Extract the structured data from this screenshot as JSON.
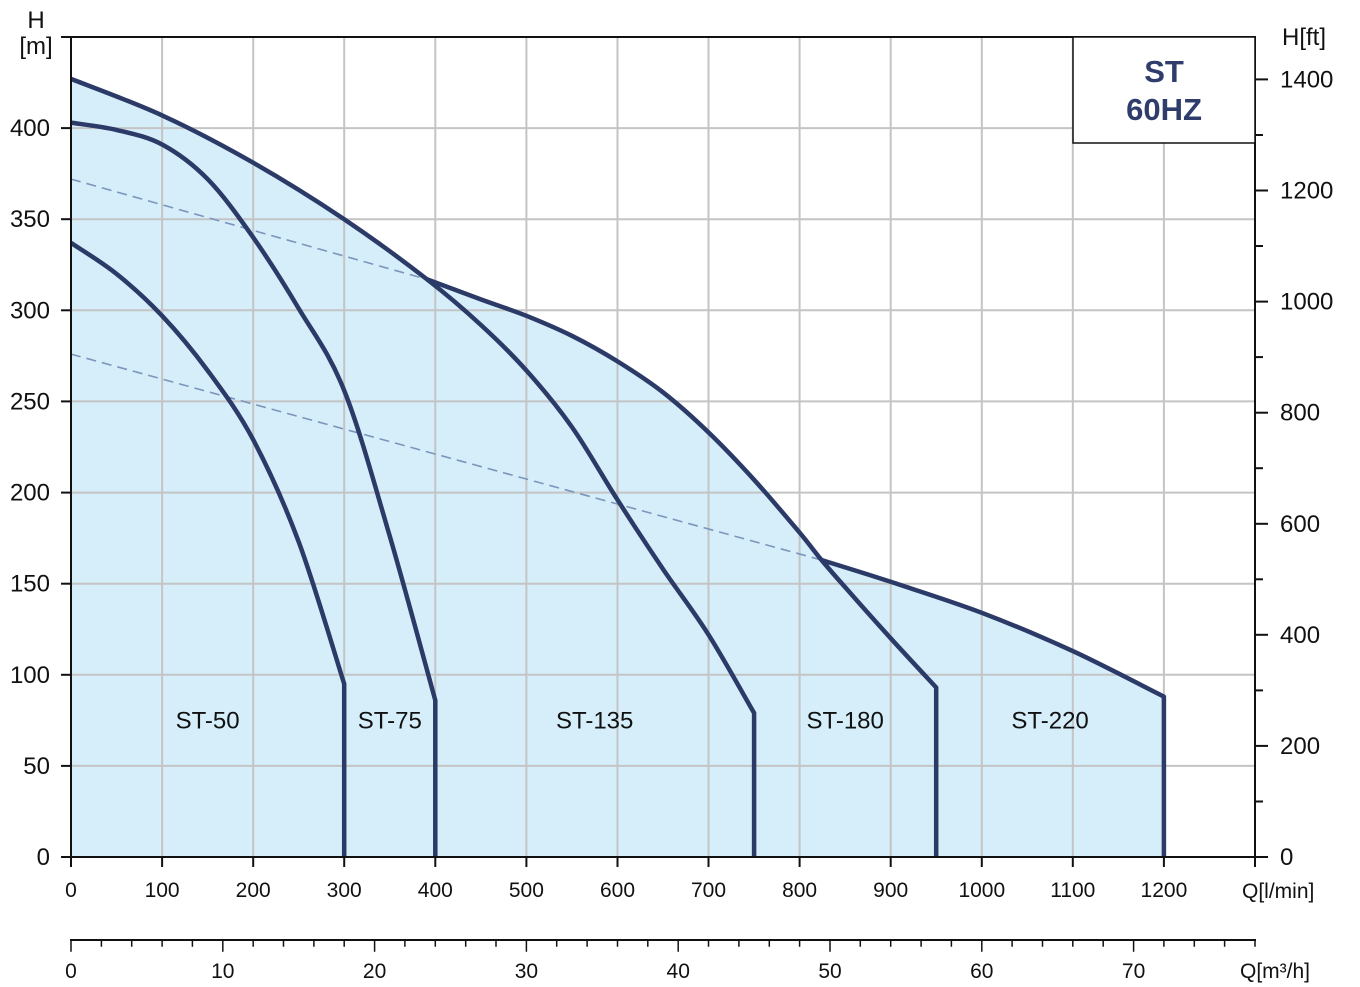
{
  "chart_data": {
    "type": "line",
    "badge": [
      "ST",
      "60HZ"
    ],
    "ylabel": "H",
    "ylabel_unit": "[m]",
    "y2label": "H[ft]",
    "xlabel": "Q[l/min]",
    "x2label": "Q[m³/h]",
    "xlim": [
      0,
      1300
    ],
    "ylim": [
      0,
      450
    ],
    "xticks": [
      0,
      100,
      200,
      300,
      400,
      500,
      600,
      700,
      800,
      900,
      1000,
      1100,
      1200
    ],
    "yticks": [
      0,
      50,
      100,
      150,
      200,
      250,
      300,
      350,
      400
    ],
    "y2": {
      "ticks": [
        0,
        200,
        400,
        600,
        800,
        1000,
        1200,
        1400
      ],
      "minor_step": 100
    },
    "x2": {
      "lim": [
        0,
        78
      ],
      "ticks": [
        0,
        10,
        20,
        30,
        40,
        50,
        60,
        70
      ],
      "minor_step": 2
    },
    "grid": true,
    "series": [
      {
        "name": "ST-50",
        "x": [
          0,
          50,
          100,
          150,
          200,
          250,
          300,
          300
        ],
        "y": [
          337,
          320,
          297,
          267,
          229,
          173,
          95,
          0
        ]
      },
      {
        "name": "ST-75",
        "x": [
          0,
          50,
          100,
          150,
          200,
          250,
          300,
          350,
          400,
          400
        ],
        "y": [
          403,
          399,
          391,
          372,
          340,
          301,
          256,
          176,
          86,
          0
        ]
      },
      {
        "name": "ST-135",
        "x": [
          0,
          100,
          200,
          300,
          391,
          450,
          500,
          550,
          600,
          650,
          700,
          750,
          750
        ],
        "y": [
          427,
          407,
          381,
          350,
          317,
          292,
          267,
          236,
          196,
          158,
          122,
          79,
          0
        ]
      },
      {
        "name": "ST-180",
        "x": [
          391,
          450,
          500,
          550,
          600,
          650,
          700,
          750,
          800,
          824,
          850,
          900,
          950,
          950
        ],
        "y": [
          317,
          306,
          297,
          286,
          272,
          255,
          233,
          207,
          178,
          163,
          148,
          120,
          93,
          0
        ]
      },
      {
        "name": "ST-220",
        "x": [
          824,
          900,
          1000,
          1100,
          1200,
          1200
        ],
        "y": [
          163,
          151,
          134,
          113,
          88,
          0
        ]
      }
    ],
    "boundaries": [
      {
        "style": "dashed",
        "x": [
          0,
          391
        ],
        "y": [
          372,
          317
        ]
      },
      {
        "style": "dashed",
        "x": [
          0,
          824
        ],
        "y": [
          276,
          163
        ]
      }
    ],
    "colors": {
      "area": "#d5eefa",
      "curve": "#2b3a67",
      "boundary": "#7b96bb",
      "grid": "#c4c4c4",
      "badge_text": "#2f3d6c"
    }
  }
}
